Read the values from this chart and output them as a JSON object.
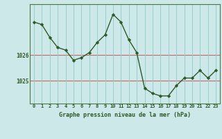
{
  "x": [
    0,
    1,
    2,
    3,
    4,
    5,
    6,
    7,
    8,
    9,
    10,
    11,
    12,
    13,
    14,
    15,
    16,
    17,
    18,
    19,
    20,
    21,
    22,
    23
  ],
  "y": [
    1027.3,
    1027.2,
    1026.7,
    1026.3,
    1026.2,
    1025.8,
    1025.9,
    1026.1,
    1026.5,
    1026.8,
    1027.6,
    1027.3,
    1026.6,
    1026.1,
    1024.7,
    1024.5,
    1024.4,
    1024.4,
    1024.8,
    1025.1,
    1025.1,
    1025.4,
    1025.1,
    1025.4
  ],
  "line_color": "#2d5a27",
  "marker": "D",
  "marker_size": 2.2,
  "background_color": "#cce8e8",
  "grid_color": "#99cccc",
  "hline_color": "#cc6666",
  "xlabel": "Graphe pression niveau de la mer (hPa)",
  "xlabel_color": "#2d5a27",
  "tick_color": "#2d5a27",
  "axis_color": "#4a7a4a",
  "yticks": [
    1025,
    1026
  ],
  "ylim": [
    1024.1,
    1028.0
  ],
  "xlim": [
    -0.5,
    23.5
  ],
  "xtick_labels": [
    "0",
    "1",
    "2",
    "3",
    "4",
    "5",
    "6",
    "7",
    "8",
    "9",
    "10",
    "11",
    "12",
    "13",
    "14",
    "15",
    "16",
    "17",
    "18",
    "19",
    "20",
    "21",
    "22",
    "23"
  ]
}
